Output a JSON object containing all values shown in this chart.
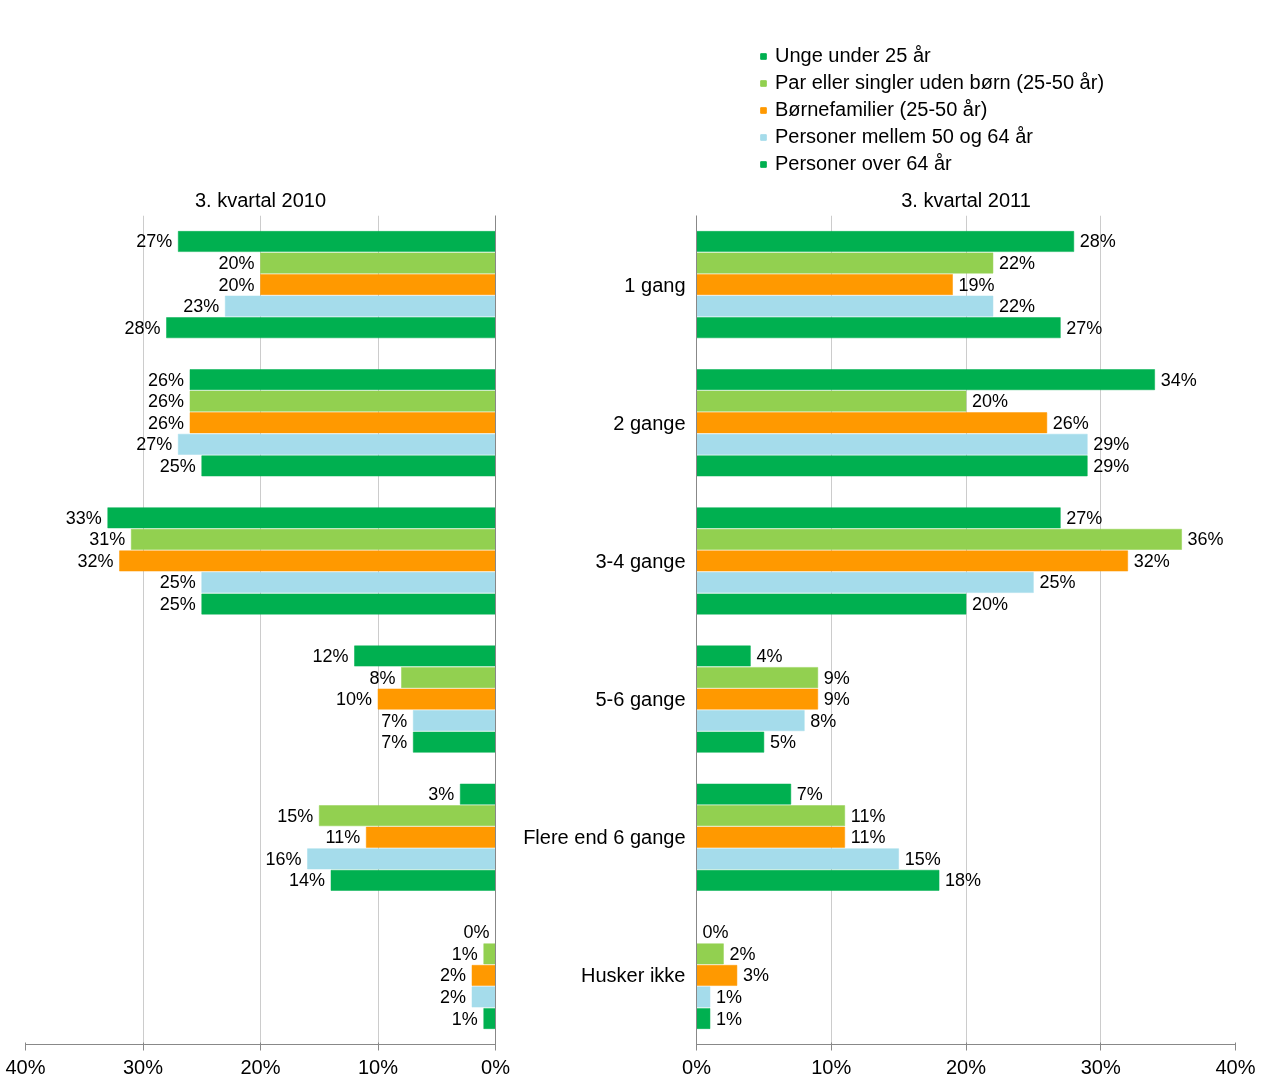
{
  "chart_data": [
    {
      "type": "bar",
      "orientation": "horizontal",
      "title": "3. kvartal 2010",
      "categories": [
        null,
        null,
        null,
        null,
        null,
        null
      ],
      "tick_labels": "x",
      "grid": "x",
      "legend": false,
      "xlim": [
        40,
        0
      ],
      "xticks": [
        {
          "value": 40,
          "label": "40%"
        },
        {
          "value": 30,
          "label": "30%"
        },
        {
          "value": 20,
          "label": "20%"
        },
        {
          "value": 10,
          "label": "10%"
        },
        {
          "value": 0,
          "label": "0%"
        }
      ],
      "series": [
        {
          "color": "#00b050",
          "values": [
            27,
            26,
            33,
            12,
            3,
            0
          ],
          "value_labels": [
            "27%",
            "26%",
            "33%",
            "12%",
            "3%",
            "0%"
          ]
        },
        {
          "color": "#92d050",
          "values": [
            20,
            26,
            31,
            8,
            15,
            1
          ],
          "value_labels": [
            "20%",
            "26%",
            "31%",
            "8%",
            "15%",
            "1%"
          ]
        },
        {
          "color": "#ff9900",
          "values": [
            20,
            26,
            32,
            10,
            11,
            2
          ],
          "value_labels": [
            "20%",
            "26%",
            "32%",
            "10%",
            "11%",
            "2%"
          ]
        },
        {
          "color": "#a5dceb",
          "values": [
            23,
            27,
            25,
            7,
            16,
            2
          ],
          "value_labels": [
            "23%",
            "27%",
            "25%",
            "7%",
            "16%",
            "2%"
          ]
        },
        {
          "color": "#00b050",
          "values": [
            28,
            25,
            25,
            7,
            14,
            1
          ],
          "value_labels": [
            "28%",
            "25%",
            "25%",
            "7%",
            "14%",
            "1%"
          ]
        }
      ]
    },
    {
      "type": "bar",
      "orientation": "horizontal",
      "title": "3. kvartal 2011",
      "categories": [
        "1 gang",
        "2 gange",
        "3-4 gange",
        "5-6 gange",
        "Flere end 6 gange",
        "Husker ikke"
      ],
      "grid": "x",
      "legend": "top",
      "xlim": [
        0,
        40
      ],
      "xticks": [
        {
          "value": 0,
          "label": "0%"
        },
        {
          "value": 10,
          "label": "10%"
        },
        {
          "value": 20,
          "label": "20%"
        },
        {
          "value": 30,
          "label": "30%"
        },
        {
          "value": 40,
          "label": "40%"
        }
      ],
      "series": [
        {
          "name": "Unge under 25 år",
          "color": "#00b050",
          "values": [
            28,
            34,
            27,
            4,
            7,
            0
          ],
          "value_labels": [
            "28%",
            "34%",
            "27%",
            "4%",
            "7%",
            "0%"
          ]
        },
        {
          "name": "Par eller singler uden børn (25-50 år)",
          "color": "#92d050",
          "values": [
            22,
            20,
            36,
            9,
            11,
            2
          ],
          "value_labels": [
            "22%",
            "20%",
            "36%",
            "9%",
            "11%",
            "2%"
          ]
        },
        {
          "name": "Børnefamilier (25-50 år)",
          "color": "#ff9900",
          "values": [
            19,
            26,
            32,
            9,
            11,
            3
          ],
          "value_labels": [
            "19%",
            "26%",
            "32%",
            "9%",
            "11%",
            "3%"
          ]
        },
        {
          "name": "Personer mellem 50 og 64 år",
          "color": "#a5dceb",
          "values": [
            22,
            29,
            25,
            8,
            15,
            1
          ],
          "value_labels": [
            "22%",
            "29%",
            "25%",
            "8%",
            "15%",
            "1%"
          ]
        },
        {
          "name": "Personer over 64 år",
          "color": "#00b050",
          "values": [
            27,
            29,
            20,
            5,
            18,
            1
          ],
          "value_labels": [
            "27%",
            "29%",
            "20%",
            "5%",
            "18%",
            "1%"
          ]
        }
      ]
    }
  ]
}
